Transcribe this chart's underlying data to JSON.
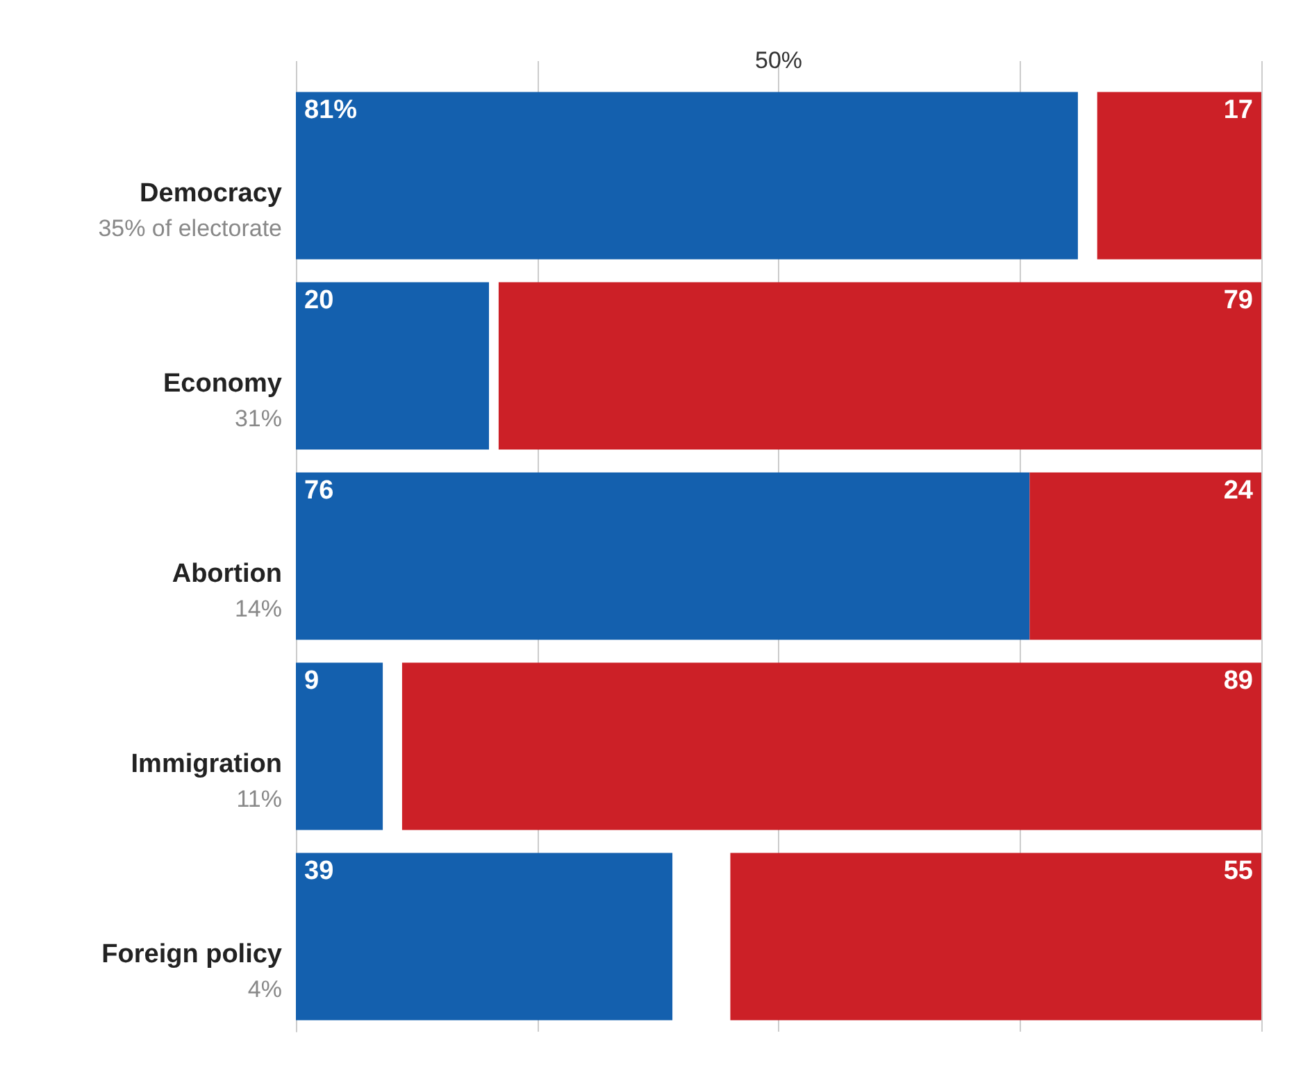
{
  "chart_data": {
    "type": "bar",
    "orientation": "horizontal",
    "categories": [
      "Democracy\n35% of electorate",
      "Economy\n31%",
      "Abortion\n14%",
      "Immigration\n11%",
      "Foreign policy\n4%"
    ],
    "series": [
      {
        "color": "#1460ae",
        "values": [
          81,
          20,
          76,
          9,
          39
        ],
        "base": [
          0,
          0,
          0,
          0,
          0
        ],
        "value_labels": [
          "81%",
          "20",
          "76",
          "9",
          "39"
        ]
      },
      {
        "color": "#cc2027",
        "values": [
          17,
          79,
          24,
          89,
          55
        ],
        "base": [
          83,
          21,
          76,
          11,
          45
        ],
        "value_labels": [
          "17",
          "79",
          "24",
          "89",
          "55"
        ]
      }
    ],
    "xlim": [
      0,
      100
    ],
    "xticks": [
      {
        "value": 0,
        "label": null
      },
      {
        "value": 25,
        "label": null
      },
      {
        "value": 50,
        "label": "50%"
      },
      {
        "value": 75,
        "label": null
      },
      {
        "value": 100,
        "label": null
      }
    ],
    "grid": "x"
  }
}
